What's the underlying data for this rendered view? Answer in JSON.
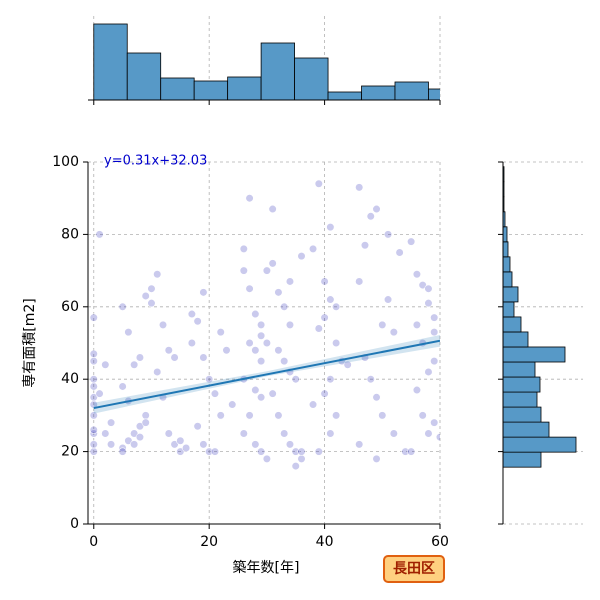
{
  "chart_data": [
    {
      "type": "scatter",
      "xlabel": "築年数[年]",
      "ylabel": "専有面積[m2]",
      "color": "#2a2ab8",
      "x": [
        0,
        0,
        0,
        0,
        0,
        0,
        0,
        0,
        0,
        0,
        0,
        0,
        1,
        2,
        3,
        2,
        1,
        3,
        5,
        6,
        7,
        8,
        9,
        6,
        5,
        7,
        8,
        6,
        5,
        9,
        10,
        5,
        7,
        8,
        9,
        11,
        10,
        12,
        13,
        14,
        11,
        12,
        13,
        14,
        15,
        16,
        15,
        17,
        18,
        17,
        19,
        20,
        21,
        22,
        18,
        19,
        20,
        21,
        19,
        22,
        23,
        24,
        26,
        26,
        27,
        28,
        29,
        27,
        28,
        29,
        26,
        28,
        29,
        27,
        26,
        28,
        29,
        30,
        27,
        29,
        31,
        31,
        32,
        33,
        34,
        30,
        32,
        33,
        34,
        35,
        31,
        32,
        33,
        34,
        35,
        36,
        35,
        36,
        36,
        30,
        34,
        39,
        41,
        38,
        40,
        41,
        42,
        40,
        39,
        42,
        43,
        41,
        40,
        38,
        42,
        41,
        39,
        44,
        46,
        49,
        48,
        51,
        47,
        53,
        46,
        50,
        52,
        47,
        48,
        49,
        50,
        52,
        54,
        46,
        49,
        51,
        55,
        56,
        57,
        58,
        59,
        56,
        57,
        59,
        58,
        56,
        57,
        59,
        58,
        60,
        55,
        58,
        59
      ],
      "values": [
        20,
        22,
        25,
        26,
        30,
        33,
        35,
        38,
        40,
        45,
        47,
        57,
        80,
        25,
        28,
        44,
        36,
        22,
        21,
        23,
        25,
        27,
        30,
        34,
        38,
        44,
        46,
        53,
        60,
        63,
        61,
        20,
        22,
        24,
        28,
        69,
        65,
        55,
        48,
        46,
        42,
        35,
        25,
        22,
        20,
        21,
        23,
        58,
        56,
        50,
        46,
        40,
        36,
        30,
        27,
        22,
        20,
        20,
        64,
        53,
        48,
        33,
        76,
        70,
        65,
        58,
        52,
        50,
        48,
        45,
        40,
        37,
        35,
        30,
        25,
        22,
        20,
        18,
        90,
        55,
        87,
        72,
        64,
        60,
        55,
        50,
        48,
        45,
        42,
        40,
        36,
        30,
        25,
        22,
        20,
        18,
        16,
        20,
        74,
        70,
        67,
        94,
        82,
        76,
        67,
        62,
        60,
        57,
        54,
        50,
        45,
        40,
        36,
        33,
        30,
        25,
        20,
        44,
        93,
        87,
        85,
        80,
        77,
        75,
        67,
        55,
        53,
        46,
        40,
        35,
        30,
        25,
        20,
        22,
        18,
        62,
        78,
        69,
        66,
        61,
        57,
        55,
        50,
        45,
        42,
        37,
        30,
        28,
        25,
        24,
        20,
        65,
        53
      ],
      "fit_line": {
        "color": "#1f77b4",
        "x": [
          0,
          60
        ],
        "values": [
          32.03,
          50.63
        ],
        "band_x": [
          0,
          30,
          60
        ],
        "band_lower": [
          30.5,
          40.8,
          49.0
        ],
        "band_upper": [
          33.5,
          42.2,
          52.2
        ]
      },
      "annotation": "y=0.31x+32.03",
      "badge": "長田区",
      "xlim": [
        -1,
        60
      ],
      "ylim": [
        0,
        100
      ],
      "xticks": [
        0,
        20,
        40,
        60
      ],
      "yticks": [
        0,
        20,
        40,
        60,
        80,
        100
      ],
      "grid": true
    },
    {
      "type": "histogram",
      "orientation": "vertical",
      "color": "#5799c7",
      "bins": [
        0,
        5.8,
        11.6,
        17.4,
        23.2,
        29,
        34.8,
        40.6,
        46.4,
        52.2,
        58,
        63.8
      ],
      "values": [
        76,
        47,
        22,
        19,
        23,
        57,
        42,
        8,
        14,
        18,
        11
      ],
      "ylim": [
        0,
        80
      ]
    },
    {
      "type": "histogram",
      "orientation": "horizontal",
      "color": "#5799c7",
      "bins": [
        15.7,
        19.85,
        24,
        28.15,
        32.3,
        36.45,
        40.6,
        44.75,
        48.9,
        53.05,
        57.2,
        61.35,
        65.5,
        69.65,
        73.8,
        77.95,
        82.1,
        86.25,
        90.4,
        94.55,
        98.7
      ],
      "values": [
        38,
        73,
        46,
        38,
        34,
        37,
        32,
        62,
        25,
        18,
        11,
        15,
        9,
        7,
        5,
        4,
        2,
        1,
        1,
        1
      ],
      "xlim": [
        0,
        80
      ]
    }
  ]
}
